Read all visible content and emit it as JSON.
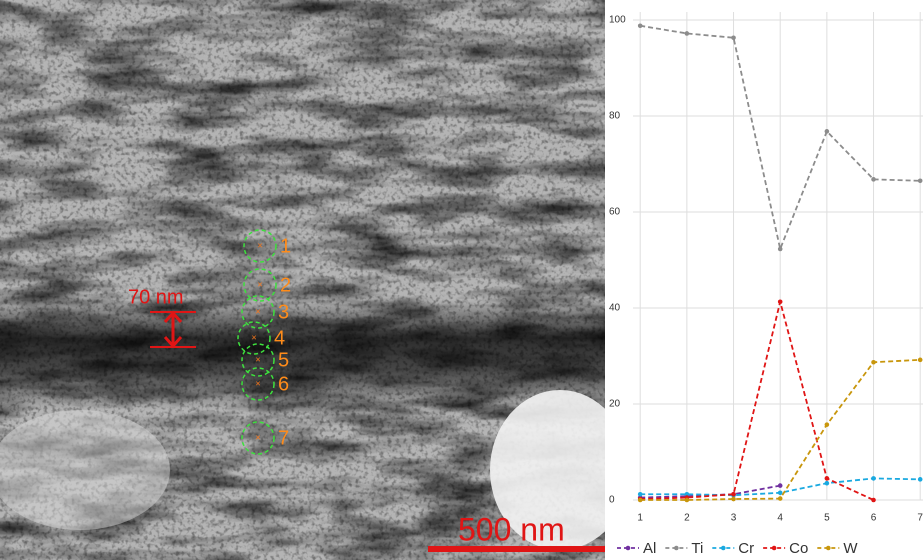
{
  "image": {
    "thickness_label": "70 nm",
    "scale_bar": "500 nm",
    "points": [
      "1",
      "2",
      "3",
      "4",
      "5",
      "6",
      "7"
    ]
  },
  "chart_data": {
    "type": "line",
    "x": [
      1,
      2,
      3,
      4,
      5,
      6,
      7
    ],
    "xlim": [
      0.76,
      7.06
    ],
    "xticks": [
      1,
      2,
      3,
      4,
      5,
      6,
      7
    ],
    "ylim": [
      0,
      100
    ],
    "yticks": [
      0,
      20,
      40,
      60,
      80,
      100
    ],
    "grid": true,
    "legend": "bottom",
    "series": [
      {
        "name": "Al",
        "color": "#7030a0",
        "values": [
          0.5,
          0.8,
          1.2,
          3.0,
          null,
          null,
          null
        ]
      },
      {
        "name": "Ti",
        "color": "#8c8c8c",
        "values": [
          98.8,
          97.2,
          96.3,
          52.3,
          76.8,
          66.8,
          66.5
        ]
      },
      {
        "name": "Cr",
        "color": "#1aa9e0",
        "values": [
          1.2,
          1.2,
          1.0,
          1.5,
          3.5,
          4.5,
          4.3
        ]
      },
      {
        "name": "Co",
        "color": "#e01515",
        "values": [
          0.2,
          0.5,
          1.2,
          41.3,
          4.5,
          0,
          null
        ]
      },
      {
        "name": "W",
        "color": "#c8960c",
        "values": [
          0,
          0,
          0.2,
          0.3,
          15.7,
          28.7,
          29.2
        ]
      }
    ]
  }
}
